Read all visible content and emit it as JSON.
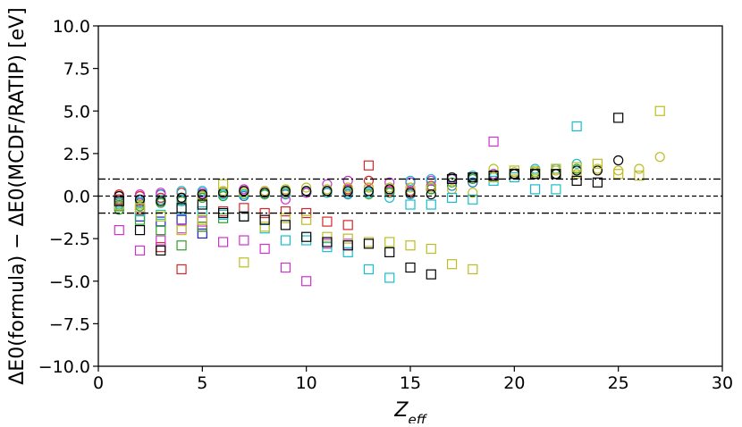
{
  "chart_data": {
    "type": "scatter",
    "title": "",
    "xlabel": "Z",
    "xlabel_sub": "eff",
    "ylabel": "ΔE0(formula) − ΔE0(MCDF/RATIP) [eV]",
    "xlim": [
      0,
      30
    ],
    "ylim": [
      -10,
      10
    ],
    "x_ticks": [
      0,
      5,
      10,
      15,
      20,
      25,
      30
    ],
    "y_ticks": [
      -10.0,
      -7.5,
      -5.0,
      -2.5,
      0.0,
      2.5,
      5.0,
      7.5,
      10.0
    ],
    "x_tick_labels": [
      "0",
      "5",
      "10",
      "15",
      "20",
      "25",
      "30"
    ],
    "y_tick_labels": [
      "−10.0",
      "−7.5",
      "−5.0",
      "−2.5",
      "0.0",
      "2.5",
      "5.0",
      "7.5",
      "10.0"
    ],
    "grid": false,
    "reference_lines": [
      {
        "y": 0,
        "style": "dashed",
        "color": "#000000"
      },
      {
        "y": 1,
        "style": "dashdot",
        "color": "#000000"
      },
      {
        "y": -1,
        "style": "dashdot",
        "color": "#000000"
      }
    ],
    "series": [
      {
        "marker": "circle",
        "color": "#d62728",
        "points": [
          [
            1,
            0.1
          ],
          [
            2,
            0.0
          ],
          [
            3,
            -0.1
          ],
          [
            4,
            0.2
          ],
          [
            5,
            0.1
          ],
          [
            6,
            0.2
          ],
          [
            7,
            0.3
          ],
          [
            8,
            0.2
          ],
          [
            9,
            0.3
          ],
          [
            10,
            0.2
          ],
          [
            11,
            0.3
          ],
          [
            12,
            0.4
          ],
          [
            13,
            0.9
          ],
          [
            14,
            0.3
          ],
          [
            15,
            0.3
          ],
          [
            16,
            0.6
          ]
        ]
      },
      {
        "marker": "circle",
        "color": "#1f77b4",
        "points": [
          [
            1,
            -0.3
          ],
          [
            2,
            -0.4
          ],
          [
            3,
            0.1
          ],
          [
            4,
            -0.2
          ],
          [
            5,
            0.0
          ],
          [
            6,
            0.1
          ],
          [
            7,
            0.0
          ],
          [
            8,
            0.1
          ],
          [
            9,
            0.1
          ],
          [
            10,
            0.2
          ],
          [
            11,
            0.2
          ],
          [
            12,
            0.1
          ],
          [
            13,
            0.2
          ],
          [
            14,
            0.2
          ],
          [
            15,
            0.1
          ],
          [
            16,
            0.4
          ],
          [
            17,
            0.6
          ],
          [
            18,
            0.8
          ]
        ]
      },
      {
        "marker": "circle",
        "color": "#2ca02c",
        "points": [
          [
            1,
            -0.8
          ],
          [
            2,
            -0.6
          ],
          [
            3,
            -0.4
          ],
          [
            4,
            -0.3
          ],
          [
            5,
            -0.1
          ],
          [
            6,
            0.0
          ],
          [
            7,
            0.1
          ],
          [
            8,
            0.1
          ],
          [
            9,
            0.2
          ],
          [
            10,
            0.2
          ],
          [
            11,
            0.2
          ],
          [
            12,
            0.2
          ],
          [
            13,
            0.1
          ],
          [
            14,
            0.2
          ],
          [
            15,
            0.2
          ],
          [
            16,
            0.4
          ],
          [
            17,
            0.8
          ],
          [
            18,
            1.0
          ],
          [
            19,
            1.3
          ],
          [
            20,
            1.3
          ],
          [
            21,
            1.4
          ],
          [
            22,
            1.3
          ],
          [
            23,
            1.6
          ]
        ]
      },
      {
        "marker": "circle",
        "color": "#cc33cc",
        "points": [
          [
            1,
            -0.2
          ],
          [
            2,
            0.1
          ],
          [
            3,
            0.2
          ],
          [
            4,
            -0.1
          ],
          [
            5,
            0.2
          ],
          [
            6,
            0.2
          ],
          [
            7,
            0.4
          ],
          [
            8,
            0.3
          ],
          [
            9,
            -0.2
          ],
          [
            10,
            0.2
          ],
          [
            11,
            0.7
          ],
          [
            12,
            0.9
          ],
          [
            13,
            0.5
          ],
          [
            14,
            0.8
          ],
          [
            15,
            0.8
          ],
          [
            16,
            0.9
          ],
          [
            17,
            1.0
          ],
          [
            18,
            1.1
          ],
          [
            19,
            1.3
          ],
          [
            20,
            1.3
          ]
        ]
      },
      {
        "marker": "circle",
        "color": "#17becf",
        "points": [
          [
            1,
            -0.5
          ],
          [
            2,
            -0.3
          ],
          [
            3,
            -0.2
          ],
          [
            4,
            0.3
          ],
          [
            5,
            0.3
          ],
          [
            6,
            0.1
          ],
          [
            7,
            0.1
          ],
          [
            8,
            0.2
          ],
          [
            9,
            0.3
          ],
          [
            10,
            0.3
          ],
          [
            11,
            0.2
          ],
          [
            12,
            0.2
          ],
          [
            13,
            0.2
          ],
          [
            14,
            -0.1
          ],
          [
            15,
            0.9
          ],
          [
            16,
            1.0
          ],
          [
            17,
            1.1
          ],
          [
            18,
            1.2
          ],
          [
            19,
            1.1
          ],
          [
            20,
            1.4
          ],
          [
            21,
            1.6
          ],
          [
            22,
            1.6
          ],
          [
            23,
            1.9
          ]
        ]
      },
      {
        "marker": "circle",
        "color": "#bcbd22",
        "points": [
          [
            1,
            -0.6
          ],
          [
            2,
            -0.5
          ],
          [
            3,
            -0.3
          ],
          [
            4,
            -0.1
          ],
          [
            5,
            0.0
          ],
          [
            6,
            0.3
          ],
          [
            7,
            0.2
          ],
          [
            8,
            0.3
          ],
          [
            9,
            0.4
          ],
          [
            10,
            0.5
          ],
          [
            11,
            0.4
          ],
          [
            12,
            0.5
          ],
          [
            13,
            0.5
          ],
          [
            14,
            0.5
          ],
          [
            15,
            0.5
          ],
          [
            16,
            0.5
          ],
          [
            17,
            0.4
          ],
          [
            18,
            0.2
          ],
          [
            19,
            1.6
          ],
          [
            20,
            1.4
          ],
          [
            21,
            1.5
          ],
          [
            22,
            1.5
          ],
          [
            23,
            1.3
          ],
          [
            24,
            1.6
          ],
          [
            25,
            1.5
          ],
          [
            26,
            1.6
          ],
          [
            27,
            2.3
          ]
        ]
      },
      {
        "marker": "circle",
        "color": "#000000",
        "points": [
          [
            1,
            0.0
          ],
          [
            2,
            -0.2
          ],
          [
            3,
            -0.3
          ],
          [
            4,
            -0.1
          ],
          [
            5,
            0.1
          ],
          [
            6,
            0.2
          ],
          [
            7,
            0.3
          ],
          [
            8,
            0.2
          ],
          [
            9,
            0.3
          ],
          [
            10,
            0.3
          ],
          [
            11,
            0.3
          ],
          [
            12,
            0.3
          ],
          [
            13,
            0.3
          ],
          [
            14,
            0.4
          ],
          [
            15,
            0.2
          ],
          [
            16,
            0.1
          ],
          [
            17,
            1.1
          ],
          [
            18,
            1.1
          ],
          [
            19,
            1.2
          ],
          [
            20,
            1.3
          ],
          [
            21,
            1.3
          ],
          [
            22,
            1.3
          ],
          [
            23,
            1.5
          ],
          [
            24,
            1.5
          ],
          [
            25,
            2.1
          ]
        ]
      },
      {
        "marker": "square",
        "color": "#d62728",
        "points": [
          [
            1,
            -0.2
          ],
          [
            2,
            -0.8
          ],
          [
            3,
            -3.0
          ],
          [
            4,
            -4.3
          ],
          [
            5,
            -1.8
          ],
          [
            6,
            -0.9
          ],
          [
            7,
            -0.7
          ],
          [
            8,
            -1.0
          ],
          [
            9,
            -0.9
          ],
          [
            10,
            -1.0
          ],
          [
            11,
            -1.5
          ],
          [
            12,
            -1.7
          ],
          [
            13,
            1.8
          ]
        ]
      },
      {
        "marker": "square",
        "color": "#1f1fbf",
        "points": [
          [
            1,
            -0.5
          ],
          [
            2,
            -1.2
          ],
          [
            3,
            -1.5
          ],
          [
            4,
            -1.4
          ],
          [
            5,
            -2.2
          ]
        ]
      },
      {
        "marker": "square",
        "color": "#2ca02c",
        "points": [
          [
            1,
            -0.6
          ],
          [
            2,
            -1.4
          ],
          [
            3,
            -2.0
          ],
          [
            4,
            -2.9
          ],
          [
            5,
            -1.8
          ],
          [
            6,
            -1.3
          ]
        ]
      },
      {
        "marker": "square",
        "color": "#cc33cc",
        "points": [
          [
            1,
            -2.0
          ],
          [
            2,
            -3.2
          ],
          [
            3,
            -2.6
          ],
          [
            4,
            -1.9
          ],
          [
            5,
            -1.5
          ],
          [
            6,
            -2.7
          ],
          [
            7,
            -2.6
          ],
          [
            8,
            -3.1
          ],
          [
            9,
            -4.2
          ],
          [
            10,
            -5.0
          ],
          [
            11,
            -2.8
          ],
          [
            12,
            -2.8
          ],
          [
            19,
            3.2
          ]
        ]
      },
      {
        "marker": "square",
        "color": "#17becf",
        "points": [
          [
            1,
            -0.4
          ],
          [
            2,
            -0.9
          ],
          [
            3,
            -1.1
          ],
          [
            4,
            -0.8
          ],
          [
            5,
            -0.9
          ],
          [
            6,
            -1.1
          ],
          [
            7,
            -1.2
          ],
          [
            8,
            -1.9
          ],
          [
            9,
            -2.6
          ],
          [
            10,
            -2.6
          ],
          [
            11,
            -3.0
          ],
          [
            12,
            -3.3
          ],
          [
            13,
            -4.3
          ],
          [
            14,
            -4.8
          ],
          [
            15,
            -0.5
          ],
          [
            16,
            -0.5
          ],
          [
            17,
            -0.1
          ],
          [
            18,
            -0.2
          ],
          [
            19,
            0.9
          ],
          [
            20,
            1.1
          ],
          [
            21,
            0.4
          ],
          [
            22,
            0.4
          ],
          [
            23,
            4.1
          ]
        ]
      },
      {
        "marker": "square",
        "color": "#bcbd22",
        "points": [
          [
            1,
            -0.5
          ],
          [
            2,
            -0.7
          ],
          [
            3,
            -1.2
          ],
          [
            4,
            -2.0
          ],
          [
            5,
            -1.4
          ],
          [
            6,
            0.7
          ],
          [
            7,
            -3.9
          ],
          [
            8,
            -1.8
          ],
          [
            9,
            -1.3
          ],
          [
            10,
            -1.4
          ],
          [
            11,
            -2.4
          ],
          [
            12,
            -2.5
          ],
          [
            13,
            -2.7
          ],
          [
            14,
            -2.7
          ],
          [
            15,
            -2.9
          ],
          [
            16,
            -3.1
          ],
          [
            17,
            -4.0
          ],
          [
            18,
            -4.3
          ],
          [
            19,
            1.1
          ],
          [
            20,
            1.5
          ],
          [
            21,
            1.4
          ],
          [
            22,
            1.6
          ],
          [
            23,
            1.7
          ],
          [
            24,
            1.9
          ],
          [
            25,
            1.3
          ],
          [
            26,
            1.2
          ],
          [
            27,
            5.0
          ]
        ]
      },
      {
        "marker": "square",
        "color": "#000000",
        "points": [
          [
            1,
            -0.3
          ],
          [
            2,
            -2.0
          ],
          [
            3,
            -3.2
          ],
          [
            4,
            -0.7
          ],
          [
            5,
            -0.5
          ],
          [
            6,
            -1.0
          ],
          [
            7,
            -1.2
          ],
          [
            8,
            -1.4
          ],
          [
            9,
            -1.7
          ],
          [
            10,
            -2.4
          ],
          [
            11,
            -2.7
          ],
          [
            12,
            -2.9
          ],
          [
            13,
            -2.8
          ],
          [
            14,
            -3.3
          ],
          [
            15,
            -4.2
          ],
          [
            16,
            -4.6
          ],
          [
            17,
            1.0
          ],
          [
            18,
            1.1
          ],
          [
            19,
            1.2
          ],
          [
            20,
            1.3
          ],
          [
            21,
            1.3
          ],
          [
            22,
            1.3
          ],
          [
            23,
            0.9
          ],
          [
            24,
            0.8
          ],
          [
            25,
            4.6
          ]
        ]
      }
    ]
  }
}
